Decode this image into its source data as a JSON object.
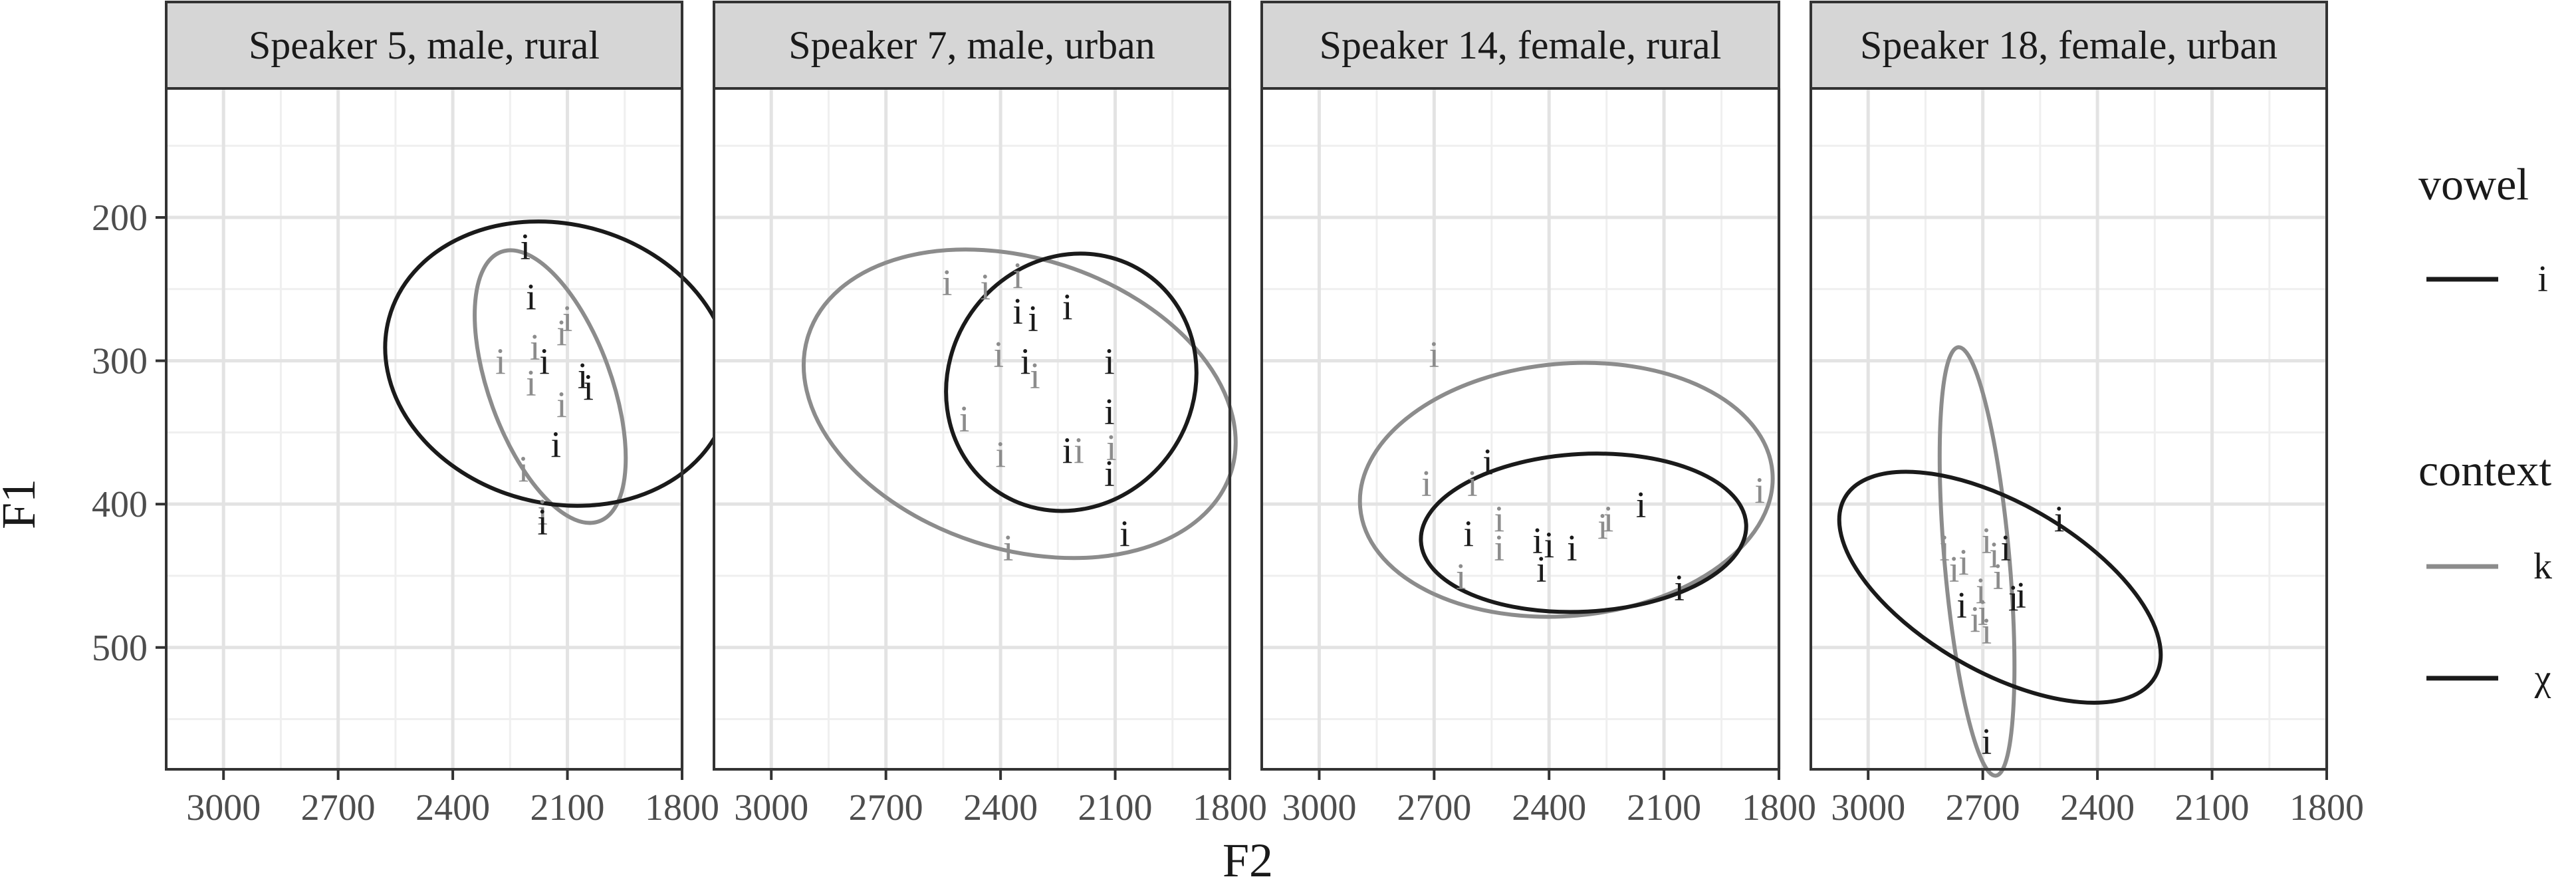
{
  "chart_data": {
    "type": "scatter",
    "xlabel": "F2",
    "ylabel": "F1",
    "xlim": [
      3150,
      1800
    ],
    "ylim": [
      585,
      110
    ],
    "x_reversed": true,
    "y_reversed": true,
    "xticks": [
      3000,
      2700,
      2400,
      2100,
      1800
    ],
    "yticks": [
      200,
      300,
      400,
      500
    ],
    "grid": true,
    "legend_placement": "right",
    "colors": {
      "k": "#8c8c8c",
      "χ": "#1a1a1a"
    },
    "legend": [
      {
        "title": "vowel",
        "entries": [
          {
            "label": "i",
            "color": "#1a1a1a"
          }
        ]
      },
      {
        "title": "context",
        "entries": [
          {
            "label": "k",
            "color": "#8c8c8c"
          },
          {
            "label": "χ",
            "color": "#1a1a1a"
          }
        ]
      }
    ],
    "panels": [
      {
        "title": "Speaker 5, male, rural",
        "ellipses": [
          {
            "context": "k",
            "cx": 2145,
            "cy": 318,
            "rx": 160,
            "ry": 100,
            "angle": -20
          },
          {
            "context": "χ",
            "cx": 2125,
            "cy": 302,
            "rx": 365,
            "ry": 122,
            "angle": -75
          }
        ],
        "points": [
          {
            "label": "i",
            "context": "χ",
            "x": 2210,
            "y": 220
          },
          {
            "label": "i",
            "context": "χ",
            "x": 2195,
            "y": 255
          },
          {
            "label": "i",
            "context": "k",
            "x": 2275,
            "y": 300
          },
          {
            "label": "i",
            "context": "k",
            "x": 2185,
            "y": 290
          },
          {
            "label": "i",
            "context": "χ",
            "x": 2160,
            "y": 300
          },
          {
            "label": "i",
            "context": "k",
            "x": 2115,
            "y": 280
          },
          {
            "label": "i",
            "context": "k",
            "x": 2100,
            "y": 270
          },
          {
            "label": "i",
            "context": "k",
            "x": 2195,
            "y": 315
          },
          {
            "label": "i",
            "context": "χ",
            "x": 2060,
            "y": 310
          },
          {
            "label": "i",
            "context": "χ",
            "x": 2045,
            "y": 318
          },
          {
            "label": "i",
            "context": "k",
            "x": 2115,
            "y": 330
          },
          {
            "label": "i",
            "context": "χ",
            "x": 2130,
            "y": 358
          },
          {
            "label": "i",
            "context": "k",
            "x": 2215,
            "y": 375
          },
          {
            "label": "i",
            "context": "k",
            "x": 2165,
            "y": 405
          },
          {
            "label": "i",
            "context": "χ",
            "x": 2165,
            "y": 412
          }
        ]
      },
      {
        "title": "Speaker 7, male, urban",
        "ellipses": [
          {
            "context": "k",
            "cx": 2350,
            "cy": 330,
            "rx": 380,
            "ry": 155,
            "angle": -72
          },
          {
            "context": "χ",
            "cx": 2215,
            "cy": 315,
            "rx": 345,
            "ry": 85,
            "angle": -55
          }
        ],
        "points": [
          {
            "label": "i",
            "context": "k",
            "x": 2540,
            "y": 245
          },
          {
            "label": "i",
            "context": "k",
            "x": 2440,
            "y": 248
          },
          {
            "label": "i",
            "context": "k",
            "x": 2355,
            "y": 240
          },
          {
            "label": "i",
            "context": "χ",
            "x": 2355,
            "y": 265
          },
          {
            "label": "i",
            "context": "χ",
            "x": 2315,
            "y": 270
          },
          {
            "label": "i",
            "context": "χ",
            "x": 2225,
            "y": 262
          },
          {
            "label": "i",
            "context": "k",
            "x": 2405,
            "y": 295
          },
          {
            "label": "i",
            "context": "χ",
            "x": 2335,
            "y": 300
          },
          {
            "label": "i",
            "context": "k",
            "x": 2310,
            "y": 310
          },
          {
            "label": "i",
            "context": "χ",
            "x": 2115,
            "y": 300
          },
          {
            "label": "i",
            "context": "k",
            "x": 2495,
            "y": 340
          },
          {
            "label": "i",
            "context": "χ",
            "x": 2115,
            "y": 335
          },
          {
            "label": "i",
            "context": "k",
            "x": 2400,
            "y": 365
          },
          {
            "label": "i",
            "context": "χ",
            "x": 2225,
            "y": 362
          },
          {
            "label": "i",
            "context": "k",
            "x": 2195,
            "y": 362
          },
          {
            "label": "i",
            "context": "k",
            "x": 2110,
            "y": 360
          },
          {
            "label": "i",
            "context": "χ",
            "x": 2115,
            "y": 378
          },
          {
            "label": "i",
            "context": "χ",
            "x": 2075,
            "y": 420
          },
          {
            "label": "i",
            "context": "k",
            "x": 2380,
            "y": 430
          }
        ]
      },
      {
        "title": "Speaker 14, female, rural",
        "ellipses": [
          {
            "context": "k",
            "cx": 2355,
            "cy": 390,
            "rx": 540,
            "ry": 88,
            "angle": -5
          },
          {
            "context": "χ",
            "cx": 2310,
            "cy": 420,
            "rx": 425,
            "ry": 55,
            "angle": -3
          }
        ],
        "points": [
          {
            "label": "i",
            "context": "k",
            "x": 2700,
            "y": 295
          },
          {
            "label": "i",
            "context": "k",
            "x": 2720,
            "y": 385
          },
          {
            "label": "i",
            "context": "χ",
            "x": 2560,
            "y": 370
          },
          {
            "label": "i",
            "context": "k",
            "x": 2600,
            "y": 385
          },
          {
            "label": "i",
            "context": "k",
            "x": 1850,
            "y": 390
          },
          {
            "label": "i",
            "context": "k",
            "x": 2530,
            "y": 410
          },
          {
            "label": "i",
            "context": "χ",
            "x": 2610,
            "y": 420
          },
          {
            "label": "i",
            "context": "k",
            "x": 2530,
            "y": 430
          },
          {
            "label": "i",
            "context": "χ",
            "x": 2430,
            "y": 425
          },
          {
            "label": "i",
            "context": "k",
            "x": 2260,
            "y": 415
          },
          {
            "label": "i",
            "context": "k",
            "x": 2245,
            "y": 410
          },
          {
            "label": "i",
            "context": "χ",
            "x": 2160,
            "y": 400
          },
          {
            "label": "i",
            "context": "χ",
            "x": 2400,
            "y": 428
          },
          {
            "label": "i",
            "context": "χ",
            "x": 2340,
            "y": 430
          },
          {
            "label": "i",
            "context": "χ",
            "x": 2420,
            "y": 445
          },
          {
            "label": "i",
            "context": "k",
            "x": 2630,
            "y": 450
          },
          {
            "label": "i",
            "context": "χ",
            "x": 2060,
            "y": 458
          }
        ]
      },
      {
        "title": "Speaker 18, female, urban",
        "ellipses": [
          {
            "context": "k",
            "cx": 2715,
            "cy": 440,
            "rx": 85,
            "ry": 150,
            "angle": -5
          },
          {
            "context": "χ",
            "cx": 2655,
            "cy": 458,
            "rx": 220,
            "ry": 125,
            "angle": -60
          }
        ],
        "points": [
          {
            "label": "i",
            "context": "k",
            "x": 2800,
            "y": 430
          },
          {
            "label": "i",
            "context": "k",
            "x": 2775,
            "y": 445
          },
          {
            "label": "i",
            "context": "k",
            "x": 2750,
            "y": 440
          },
          {
            "label": "i",
            "context": "k",
            "x": 2690,
            "y": 425
          },
          {
            "label": "i",
            "context": "k",
            "x": 2670,
            "y": 435
          },
          {
            "label": "i",
            "context": "χ",
            "x": 2640,
            "y": 430
          },
          {
            "label": "i",
            "context": "χ",
            "x": 2500,
            "y": 410
          },
          {
            "label": "i",
            "context": "k",
            "x": 2660,
            "y": 450
          },
          {
            "label": "i",
            "context": "k",
            "x": 2705,
            "y": 460
          },
          {
            "label": "i",
            "context": "χ",
            "x": 2620,
            "y": 465
          },
          {
            "label": "i",
            "context": "χ",
            "x": 2600,
            "y": 463
          },
          {
            "label": "i",
            "context": "χ",
            "x": 2755,
            "y": 470
          },
          {
            "label": "i",
            "context": "k",
            "x": 2700,
            "y": 475
          },
          {
            "label": "i",
            "context": "k",
            "x": 2720,
            "y": 480
          },
          {
            "label": "i",
            "context": "k",
            "x": 2690,
            "y": 488
          },
          {
            "label": "i",
            "context": "χ",
            "x": 2690,
            "y": 565
          }
        ]
      }
    ]
  }
}
